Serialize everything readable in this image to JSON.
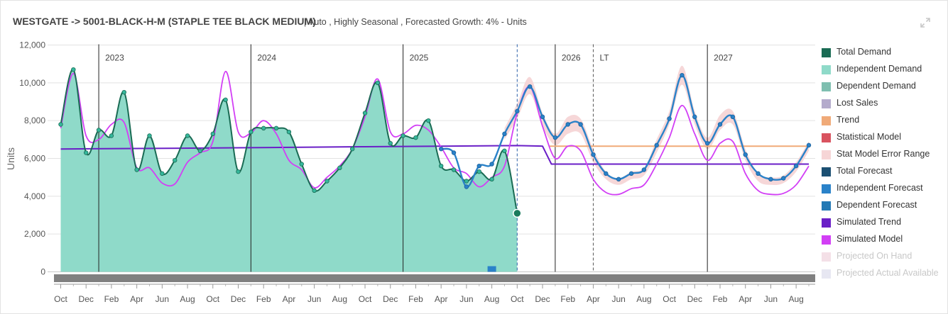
{
  "header": {
    "title": "WESTGATE -> 5001-BLACK-H-M (STAPLE TEE BLACK MEDIUM)",
    "subtitle": "|  Auto ,  Highly Seasonal , Forecasted Growth: 4%  -  Units"
  },
  "chart_data": {
    "type": "area",
    "ylabel": "Units",
    "ylim": [
      0,
      12000
    ],
    "yticks": [
      "12,000",
      "10,000",
      "8,000",
      "6,000",
      "4,000",
      "2,000",
      "0"
    ],
    "ytick_values": [
      12000,
      10000,
      8000,
      6000,
      4000,
      2000,
      0
    ],
    "x_month_labels": [
      "Oct",
      "Dec",
      "Feb",
      "Apr",
      "Jun",
      "Aug",
      "Oct",
      "Dec",
      "Feb",
      "Apr",
      "Jun",
      "Aug",
      "Oct",
      "Dec",
      "Feb",
      "Apr",
      "Jun",
      "Aug",
      "Oct",
      "Dec",
      "Feb",
      "Apr",
      "Jun",
      "Aug",
      "Oct",
      "Dec",
      "Feb",
      "Apr",
      "Jun",
      "Aug"
    ],
    "x_range_months": [
      0,
      59
    ],
    "period_markers": [
      {
        "label": "2023",
        "month": 3,
        "style": "solid"
      },
      {
        "label": "2024",
        "month": 15,
        "style": "solid"
      },
      {
        "label": "2025",
        "month": 27,
        "style": "solid"
      },
      {
        "label": "",
        "month": 36,
        "style": "dashed-blue"
      },
      {
        "label": "2026",
        "month": 39,
        "style": "solid"
      },
      {
        "label": "LT",
        "month": 42,
        "style": "dashed"
      },
      {
        "label": "2027",
        "month": 51,
        "style": "solid"
      }
    ],
    "series": [
      {
        "name": "Total Demand",
        "color": "#1a6b54",
        "type": "line",
        "months": [
          0,
          1,
          2,
          3,
          4,
          5,
          6,
          7,
          8,
          9,
          10,
          11,
          12,
          13,
          14,
          15,
          16,
          17,
          18,
          19,
          20,
          21,
          22,
          23,
          24,
          25,
          26,
          27,
          28,
          29,
          30,
          31,
          32,
          33,
          34,
          35,
          36
        ],
        "values": [
          7800,
          10700,
          6300,
          7500,
          7200,
          9500,
          5400,
          7200,
          5200,
          5900,
          7200,
          6400,
          7300,
          9100,
          5300,
          7400,
          7600,
          7600,
          7400,
          5700,
          4300,
          4800,
          5500,
          6500,
          8400,
          10000,
          6800,
          7200,
          7100,
          8000,
          5600,
          5400,
          4800,
          5300,
          4900,
          6400,
          3100
        ]
      },
      {
        "name": "Independent Demand",
        "color": "#8fdac9",
        "type": "area",
        "months": [
          0,
          1,
          2,
          3,
          4,
          5,
          6,
          7,
          8,
          9,
          10,
          11,
          12,
          13,
          14,
          15,
          16,
          17,
          18,
          19,
          20,
          21,
          22,
          23,
          24,
          25,
          26,
          27,
          28,
          29,
          30,
          31,
          32,
          33,
          34,
          35,
          36
        ],
        "values": [
          7800,
          10700,
          6300,
          7500,
          7200,
          9500,
          5400,
          7200,
          5200,
          5900,
          7200,
          6400,
          7300,
          9100,
          5300,
          7400,
          7600,
          7600,
          7400,
          5700,
          4300,
          4800,
          5500,
          6500,
          8400,
          10000,
          6800,
          7200,
          7100,
          8000,
          5600,
          5400,
          4800,
          5300,
          4900,
          6400,
          3100
        ]
      },
      {
        "name": "Dependent Demand",
        "color": "#7fbfb0",
        "type": "bar",
        "months": [
          34
        ],
        "values": [
          300
        ]
      },
      {
        "name": "Lost Sales",
        "color": "#b4abcc",
        "type": "line",
        "months": [],
        "values": []
      },
      {
        "name": "Trend",
        "color": "#f0aa78",
        "type": "line",
        "months": [
          38.5,
          59
        ],
        "values": [
          6650,
          6650
        ]
      },
      {
        "name": "Statistical Model",
        "color": "#d9535f",
        "type": "line",
        "months": [],
        "values": []
      },
      {
        "name": "Stat Model Error Range",
        "color": "#f6d5d6",
        "type": "band",
        "months": [
          35,
          36,
          37,
          38,
          39,
          40,
          41,
          42,
          43,
          44,
          45,
          46,
          47,
          48,
          49,
          50,
          51,
          52,
          53,
          54,
          55,
          56,
          57,
          58,
          59
        ],
        "low": [
          7000,
          8100,
          9400,
          7700,
          6700,
          7300,
          7300,
          5800,
          4900,
          4600,
          4900,
          5100,
          6300,
          7800,
          9900,
          7800,
          6500,
          7500,
          7800,
          5900,
          4800,
          4600,
          4700,
          5300,
          6400
        ],
        "high": [
          7600,
          8900,
          10300,
          8400,
          7300,
          8200,
          8100,
          6500,
          5300,
          4950,
          5300,
          5500,
          7000,
          8500,
          10900,
          8500,
          7100,
          8300,
          8500,
          6500,
          5200,
          5000,
          5100,
          5800,
          6900
        ]
      },
      {
        "name": "Total Forecast",
        "color": "#1b4f72",
        "type": "line",
        "months": [],
        "values": []
      },
      {
        "name": "Independent Forecast",
        "color": "#2a82c9",
        "type": "line",
        "months": [
          30,
          31,
          32,
          33,
          34,
          35,
          36,
          37,
          38,
          39,
          40,
          41,
          42,
          43,
          44,
          45,
          46,
          47,
          48,
          49,
          50,
          51,
          52,
          53,
          54,
          55,
          56,
          57,
          58,
          59
        ],
        "values": [
          6500,
          6300,
          4500,
          5600,
          5700,
          7300,
          8500,
          9800,
          8200,
          7100,
          7800,
          7800,
          6200,
          5200,
          4900,
          5200,
          5400,
          6700,
          8100,
          10400,
          8200,
          6800,
          7800,
          8200,
          6200,
          5200,
          4900,
          4950,
          5600,
          6700
        ]
      },
      {
        "name": "Dependent Forecast",
        "color": "#2379b5",
        "type": "line",
        "months": [],
        "values": []
      },
      {
        "name": "Simulated Trend",
        "color": "#6a1fc7",
        "type": "line",
        "months": [
          0,
          12,
          24,
          36,
          38,
          38.7,
          59
        ],
        "values": [
          6500,
          6550,
          6620,
          6680,
          6650,
          5700,
          5700
        ]
      },
      {
        "name": "Simulated Model",
        "color": "#d23ff5",
        "type": "line",
        "months": [
          0,
          1,
          2,
          3,
          4,
          5,
          6,
          7,
          8,
          9,
          10,
          11,
          12,
          13,
          14,
          15,
          16,
          17,
          18,
          19,
          20,
          21,
          22,
          23,
          24,
          25,
          26,
          27,
          28,
          29,
          30,
          31,
          32,
          33,
          34,
          35,
          36,
          37,
          38,
          39,
          40,
          41,
          42,
          43,
          44,
          45,
          46,
          47,
          48,
          49,
          50,
          51,
          52,
          53,
          54,
          55,
          56,
          57,
          58,
          59
        ],
        "values": [
          7600,
          10500,
          7200,
          7000,
          7800,
          7900,
          5500,
          5500,
          4700,
          4650,
          5800,
          6300,
          6900,
          10600,
          7400,
          7350,
          8000,
          7300,
          5900,
          5400,
          4450,
          5000,
          5600,
          6500,
          8200,
          10200,
          7400,
          7300,
          7750,
          7500,
          6600,
          5500,
          5200,
          4500,
          5000,
          5600,
          8400,
          9800,
          7700,
          6000,
          6650,
          6400,
          4900,
          4200,
          4100,
          4400,
          4600,
          5700,
          7100,
          8800,
          7300,
          5900,
          6800,
          6900,
          5200,
          4300,
          4100,
          4150,
          4600,
          5600
        ]
      },
      {
        "name": "Projected On Hand",
        "color": "#ebc6d3",
        "type": "line",
        "disabled": true,
        "months": [],
        "values": []
      },
      {
        "name": "Projected Actual Available",
        "color": "#d3d3e8",
        "type": "line",
        "disabled": true,
        "months": [],
        "values": []
      }
    ],
    "highlight_point": {
      "month": 36,
      "value": 3100
    }
  }
}
